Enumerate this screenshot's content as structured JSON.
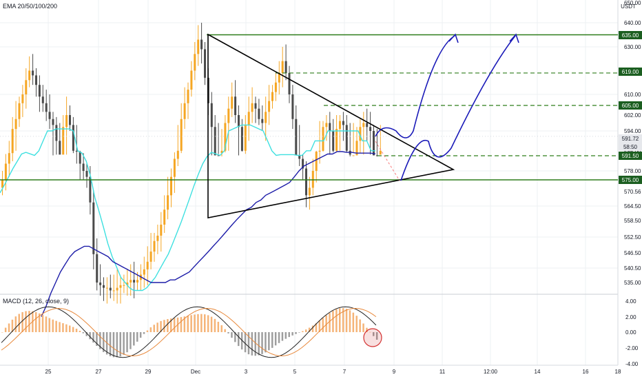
{
  "indicator_label": "EMA 20/50/100/200",
  "macd_label": "MACD (12, 26, close, 9)",
  "axis_unit": "USDT",
  "colors": {
    "bull": "#f5a623",
    "bear": "#4a4a4a",
    "ema_fast": "#3ee0e0",
    "ema_slow": "#1c1ca8",
    "triangle": "#000000",
    "level_line": "#2e7d1a",
    "level_badge": "#1b5e20",
    "projection": "#1a1ab8",
    "price_line": "#f77a7a",
    "macd_line": "#222222",
    "signal_line": "#e8883a",
    "hist_pos": "#f5b478",
    "hist_neg": "#9e9e9e",
    "circle": "#d32f2f",
    "grid": "#eef0f3"
  },
  "price_axis_ticks": [
    "650.00",
    "640.00",
    "630.00",
    "610.00",
    "602.00",
    "594.00",
    "586.00",
    "578.00",
    "570.56",
    "564.50",
    "558.50",
    "552.50",
    "546.50",
    "540.50",
    "535.00"
  ],
  "price_badges": [
    {
      "value": "635.00",
      "style": "green"
    },
    {
      "value": "619.00",
      "style": "green"
    },
    {
      "value": "605.00",
      "style": "green"
    },
    {
      "value": "591.72",
      "style": "light"
    },
    {
      "value": "58:50",
      "style": "light"
    },
    {
      "value": "591.50",
      "style": "green"
    },
    {
      "value": "575.00",
      "style": "green"
    }
  ],
  "macd_axis_ticks": [
    "4.00",
    "2.00",
    "0.00",
    "-2.00",
    "-4.00"
  ],
  "time_axis_ticks": [
    "25",
    "27",
    "29",
    "Dec",
    "3",
    "5",
    "7",
    "9",
    "11",
    "12:00",
    "14",
    "16",
    "18"
  ],
  "chart_data": {
    "type": "candlestick",
    "symbol_pair_unit": "USDT",
    "indicators": [
      "EMA 20/50/100/200",
      "MACD (12, 26, close, 9)"
    ],
    "horizontal_levels": [
      {
        "price": 635.0,
        "style": "solid"
      },
      {
        "price": 619.0,
        "style": "dashed"
      },
      {
        "price": 605.0,
        "style": "dashed"
      },
      {
        "price": 591.5,
        "style": "dashed"
      },
      {
        "price": 575.0,
        "style": "solid"
      }
    ],
    "current_price": 591.72,
    "countdown": "58:50",
    "closes": [
      575,
      581,
      588,
      595,
      600,
      606,
      610,
      616,
      620,
      618,
      614,
      609,
      606,
      603,
      600,
      597,
      593,
      590,
      596,
      602,
      597,
      592,
      586,
      581,
      578,
      576,
      566,
      546,
      535,
      534,
      533,
      533,
      532,
      532,
      533,
      534,
      534,
      535,
      536,
      535,
      536,
      538,
      540,
      543,
      547,
      551,
      553,
      557,
      563,
      569,
      576,
      583,
      592,
      600,
      606,
      612,
      620,
      627,
      633,
      629,
      617,
      606,
      596,
      591,
      588,
      592,
      598,
      604,
      609,
      602,
      596,
      592,
      597,
      603,
      606,
      604,
      600,
      598,
      603,
      607,
      611,
      615,
      619,
      624,
      619,
      610,
      600,
      591,
      583,
      579,
      569,
      572,
      578,
      586,
      592,
      596,
      598,
      594,
      592,
      595,
      599,
      597,
      592,
      590,
      591,
      593,
      596,
      598,
      596,
      594,
      591,
      590,
      592
    ],
    "ema_fast": [
      570,
      573,
      576,
      579,
      582,
      585,
      587,
      589,
      591,
      592,
      593,
      594,
      594,
      595,
      595,
      595,
      595,
      594,
      592,
      588,
      582,
      576,
      568,
      562,
      556,
      550,
      545,
      541,
      537,
      535,
      533,
      532,
      532,
      532,
      533,
      535,
      537,
      540,
      543,
      546,
      550,
      554,
      558,
      563,
      568,
      573,
      577,
      581,
      584,
      587,
      589,
      591,
      592,
      594,
      595,
      596,
      597,
      597,
      597,
      596,
      595,
      594,
      593,
      592,
      591,
      590,
      590,
      590,
      590,
      591,
      591,
      592,
      592,
      593,
      593,
      593,
      594,
      594,
      594,
      594,
      594,
      594,
      594,
      594,
      593,
      593,
      592,
      592
    ],
    "ema_slow": [
      522,
      526,
      531,
      535,
      539,
      542,
      545,
      547,
      548,
      549,
      549,
      548,
      547,
      546,
      545,
      543,
      542,
      541,
      540,
      539,
      538,
      537,
      536,
      535,
      535,
      535,
      535,
      536,
      536,
      537,
      538,
      539,
      541,
      543,
      545,
      547,
      549,
      551,
      553,
      555,
      557,
      559,
      561,
      563,
      564,
      566,
      567,
      569,
      570,
      571,
      572,
      573,
      574,
      576,
      578,
      580,
      581,
      582,
      583,
      584,
      585,
      585,
      586,
      586,
      587,
      587,
      588,
      588,
      588,
      588,
      589
    ]
  }
}
